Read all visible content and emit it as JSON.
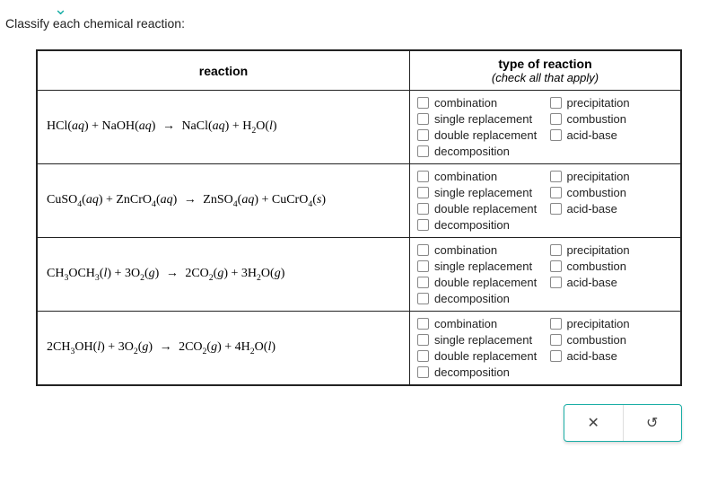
{
  "question": "Classify each chemical reaction:",
  "table": {
    "header": {
      "reaction": "reaction",
      "type_title": "type of reaction",
      "type_sub": "(check all that apply)"
    },
    "options_left": [
      "combination",
      "single replacement",
      "double replacement",
      "decomposition"
    ],
    "options_right": [
      "precipitation",
      "combustion",
      "acid-base"
    ],
    "rows": [
      {
        "formula_html": "HCl(<i>aq</i>) + NaOH(<i>aq</i>) <span class='arrow'>→</span> NaCl(<i>aq</i>) + H<sub>2</sub>O(<i>l</i>)"
      },
      {
        "formula_html": "CuSO<sub>4</sub>(<i>aq</i>) + ZnCrO<sub>4</sub>(<i>aq</i>) <span class='arrow'>→</span> ZnSO<sub>4</sub>(<i>aq</i>) + CuCrO<sub>4</sub>(<i>s</i>)"
      },
      {
        "formula_html": "CH<sub>3</sub>OCH<sub>3</sub>(<i>l</i>) + 3O<sub>2</sub>(<i>g</i>) <span class='arrow'>→</span> 2CO<sub>2</sub>(<i>g</i>) + 3H<sub>2</sub>O(<i>g</i>)"
      },
      {
        "formula_html": "2CH<sub>3</sub>OH(<i>l</i>) + 3O<sub>2</sub>(<i>g</i>) <span class='arrow'>→</span> 2CO<sub>2</sub>(<i>g</i>) + 4H<sub>2</sub>O(<i>l</i>)"
      }
    ]
  },
  "buttons": {
    "clear": "✕",
    "reset": "↺"
  },
  "colors": {
    "accent": "#1aaea6",
    "border": "#222222",
    "checkbox_border": "#888888"
  }
}
